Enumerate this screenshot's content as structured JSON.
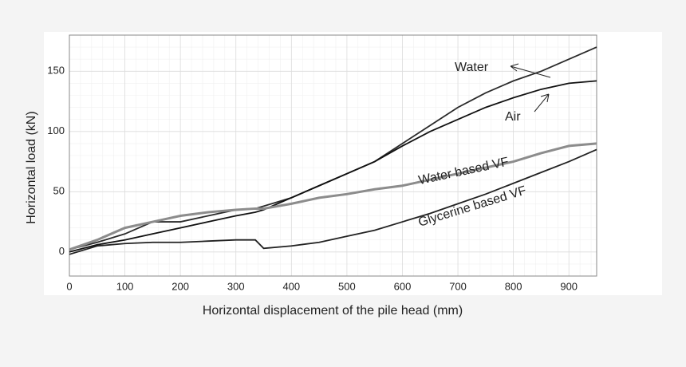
{
  "chart_data": {
    "type": "line",
    "x_label": "Horizontal displacement of the pile head (mm)",
    "y_label": "Horizontal load (kN)",
    "xlim": [
      0,
      950
    ],
    "ylim": [
      -20,
      180
    ],
    "xticks": [
      0,
      100,
      200,
      300,
      400,
      500,
      600,
      700,
      800,
      900
    ],
    "yticks": [
      0,
      50,
      100,
      150
    ],
    "grid": true,
    "x": [
      0,
      50,
      100,
      150,
      200,
      250,
      300,
      335,
      350,
      400,
      450,
      500,
      550,
      600,
      650,
      700,
      750,
      800,
      850,
      900,
      950
    ],
    "series": [
      {
        "name": "Water",
        "color": "#2a2a2a",
        "values": [
          2,
          8,
          15,
          25,
          25,
          30,
          35,
          36,
          38,
          45,
          55,
          65,
          75,
          90,
          105,
          120,
          132,
          142,
          150,
          160,
          170
        ]
      },
      {
        "name": "Air",
        "color": "#111111",
        "values": [
          0,
          6,
          10,
          15,
          20,
          25,
          30,
          33,
          35,
          45,
          55,
          65,
          75,
          88,
          100,
          110,
          120,
          128,
          135,
          140,
          142
        ]
      },
      {
        "name": "Water based VF",
        "color": "#8c8c8c",
        "values": [
          2,
          10,
          20,
          25,
          30,
          33,
          35,
          36,
          36,
          40,
          45,
          48,
          52,
          55,
          60,
          65,
          70,
          75,
          82,
          88,
          90
        ]
      },
      {
        "name": "Glycerine based VF",
        "color": "#222222",
        "values": [
          -2,
          5,
          7,
          8,
          8,
          9,
          10,
          10,
          3,
          5,
          8,
          13,
          18,
          25,
          32,
          40,
          48,
          57,
          66,
          75,
          85
        ]
      }
    ]
  }
}
